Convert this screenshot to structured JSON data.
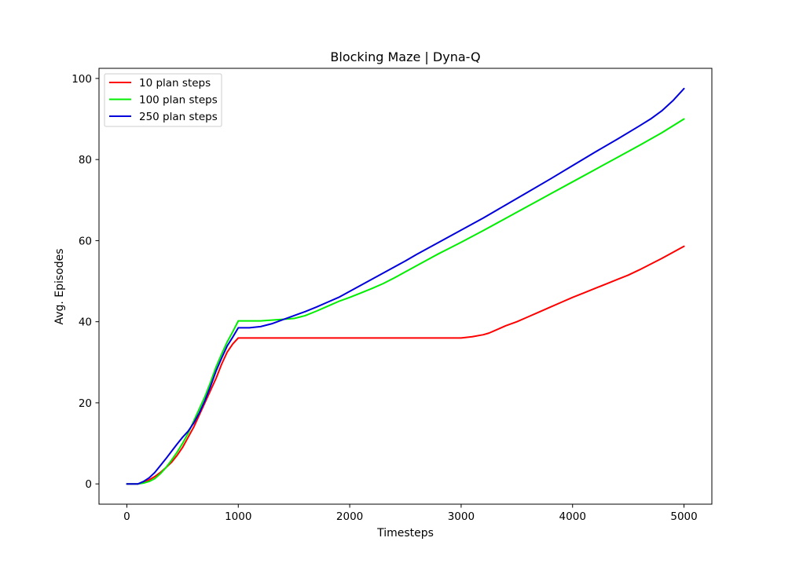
{
  "chart_data": {
    "type": "line",
    "title": "Blocking Maze | Dyna-Q",
    "xlabel": "Timesteps",
    "ylabel": "Avg. Episodes",
    "xlim": [
      -250,
      5250
    ],
    "ylim": [
      -5,
      102.5
    ],
    "xticks": [
      0,
      1000,
      2000,
      3000,
      4000,
      5000
    ],
    "yticks": [
      0,
      20,
      40,
      60,
      80,
      100
    ],
    "grid": false,
    "legend_position": "top-left",
    "series": [
      {
        "name": "10 plan steps",
        "color": "#ff0000",
        "x": [
          0,
          100,
          150,
          200,
          250,
          300,
          350,
          400,
          450,
          500,
          550,
          600,
          650,
          700,
          750,
          800,
          850,
          900,
          950,
          1000,
          1500,
          2000,
          2500,
          3000,
          3100,
          3200,
          3250,
          3300,
          3400,
          3500,
          3600,
          3700,
          3800,
          3900,
          4000,
          4100,
          4200,
          4300,
          4400,
          4500,
          4600,
          4700,
          4800,
          4900,
          5000
        ],
        "y": [
          0,
          0,
          0.3,
          1,
          1.8,
          2.8,
          4,
          5.3,
          7,
          9,
          11.5,
          14,
          17,
          20,
          23,
          26,
          29.5,
          32.5,
          34.5,
          36,
          36,
          36,
          36,
          36,
          36.3,
          36.8,
          37.2,
          37.8,
          39,
          40,
          41.2,
          42.4,
          43.6,
          44.8,
          46,
          47.1,
          48.2,
          49.3,
          50.4,
          51.5,
          52.8,
          54.2,
          55.6,
          57.1,
          58.6
        ]
      },
      {
        "name": "100 plan steps",
        "color": "#00ee00",
        "x": [
          0,
          100,
          150,
          200,
          250,
          300,
          350,
          400,
          450,
          500,
          550,
          600,
          650,
          700,
          750,
          800,
          850,
          900,
          950,
          1000,
          1100,
          1200,
          1300,
          1400,
          1500,
          1600,
          1700,
          1800,
          1900,
          2000,
          2100,
          2200,
          2300,
          2400,
          2500,
          2600,
          2700,
          2800,
          2900,
          3000,
          3200,
          3400,
          3600,
          3800,
          4000,
          4200,
          4400,
          4600,
          4800,
          5000
        ],
        "y": [
          0,
          0,
          0.2,
          0.6,
          1.3,
          2.5,
          4,
          5.8,
          7.8,
          10,
          12.5,
          15.5,
          18.5,
          21.5,
          25,
          28.8,
          32,
          35,
          37.5,
          40.2,
          40.2,
          40.2,
          40.4,
          40.6,
          40.8,
          41.5,
          42.6,
          43.8,
          45,
          46,
          47.1,
          48.2,
          49.4,
          50.8,
          52.3,
          53.8,
          55.3,
          56.8,
          58.2,
          59.6,
          62.5,
          65.5,
          68.5,
          71.5,
          74.5,
          77.5,
          80.5,
          83.5,
          86.6,
          90
        ]
      },
      {
        "name": "250 plan steps",
        "color": "#0000dd",
        "x": [
          0,
          100,
          150,
          200,
          250,
          300,
          350,
          400,
          450,
          500,
          550,
          600,
          650,
          700,
          750,
          800,
          850,
          900,
          950,
          1000,
          1100,
          1200,
          1300,
          1400,
          1500,
          1600,
          1700,
          1800,
          1900,
          2000,
          2100,
          2200,
          2300,
          2400,
          2500,
          2600,
          2700,
          2800,
          2900,
          3000,
          3200,
          3400,
          3600,
          3800,
          4000,
          4200,
          4400,
          4600,
          4700,
          4800,
          4900,
          5000
        ],
        "y": [
          0,
          0,
          0.6,
          1.5,
          2.8,
          4.5,
          6.2,
          8,
          9.8,
          11.5,
          13,
          15,
          17.5,
          20.5,
          24,
          27.8,
          31,
          34,
          36.2,
          38.5,
          38.5,
          38.8,
          39.5,
          40.5,
          41.5,
          42.5,
          43.6,
          44.8,
          46,
          47.5,
          49,
          50.5,
          52,
          53.5,
          55,
          56.6,
          58.1,
          59.6,
          61.1,
          62.6,
          65.6,
          68.8,
          72,
          75.2,
          78.5,
          81.8,
          85,
          88.3,
          90,
          92,
          94.5,
          97.5
        ]
      }
    ]
  }
}
